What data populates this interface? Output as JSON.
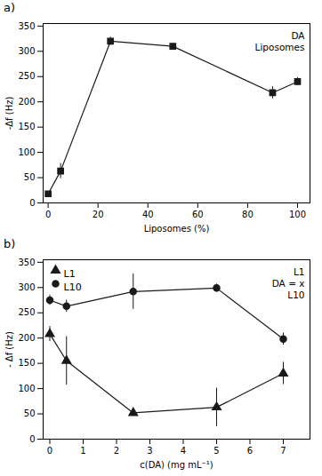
{
  "chart_data": [
    {
      "type": "line",
      "title": "a)",
      "xlabel": "Liposomes (%)",
      "ylabel": "-Δf (Hz)",
      "x": [
        0,
        5,
        25,
        50,
        90,
        100
      ],
      "values": [
        18,
        63,
        320,
        310,
        218,
        240
      ],
      "yerr": [
        3,
        15,
        8,
        5,
        12,
        8
      ],
      "color": "#1a1a1a",
      "marker": "square",
      "line_style": "solid",
      "xlim": [
        -2,
        105
      ],
      "ylim": [
        0,
        355
      ],
      "xticks": [
        0,
        20,
        40,
        60,
        80,
        100
      ],
      "yticks": [
        0,
        50,
        100,
        150,
        200,
        250,
        300,
        350
      ],
      "grid": false,
      "annotations": [
        "DA",
        "Liposomes"
      ]
    },
    {
      "type": "line",
      "title": "b)",
      "xlabel": "c(DA) (mg mL⁻¹)",
      "ylabel": "- Δf (Hz)",
      "x": [
        0,
        0.5,
        2.5,
        5,
        7
      ],
      "series": [
        {
          "name": "L1",
          "color": "#1a1a1a",
          "marker": "triangle",
          "line_style": "solid",
          "values": [
            208,
            155,
            52,
            63,
            130
          ],
          "yerr": [
            15,
            48,
            5,
            38,
            22
          ]
        },
        {
          "name": "L10",
          "color": "#1a1a1a",
          "marker": "circle",
          "line_style": "solid",
          "values": [
            275,
            263,
            292,
            299,
            198
          ],
          "yerr": [
            10,
            12,
            35,
            8,
            12
          ]
        }
      ],
      "xlim": [
        -0.2,
        7.8
      ],
      "ylim": [
        0,
        355
      ],
      "xticks": [
        0,
        1,
        2,
        3,
        4,
        5,
        6,
        7
      ],
      "yticks": [
        0,
        50,
        100,
        150,
        200,
        250,
        300,
        350
      ],
      "grid": false,
      "legend": "upper left",
      "annotations": [
        "L1",
        "DA = x",
        "L10"
      ]
    }
  ]
}
